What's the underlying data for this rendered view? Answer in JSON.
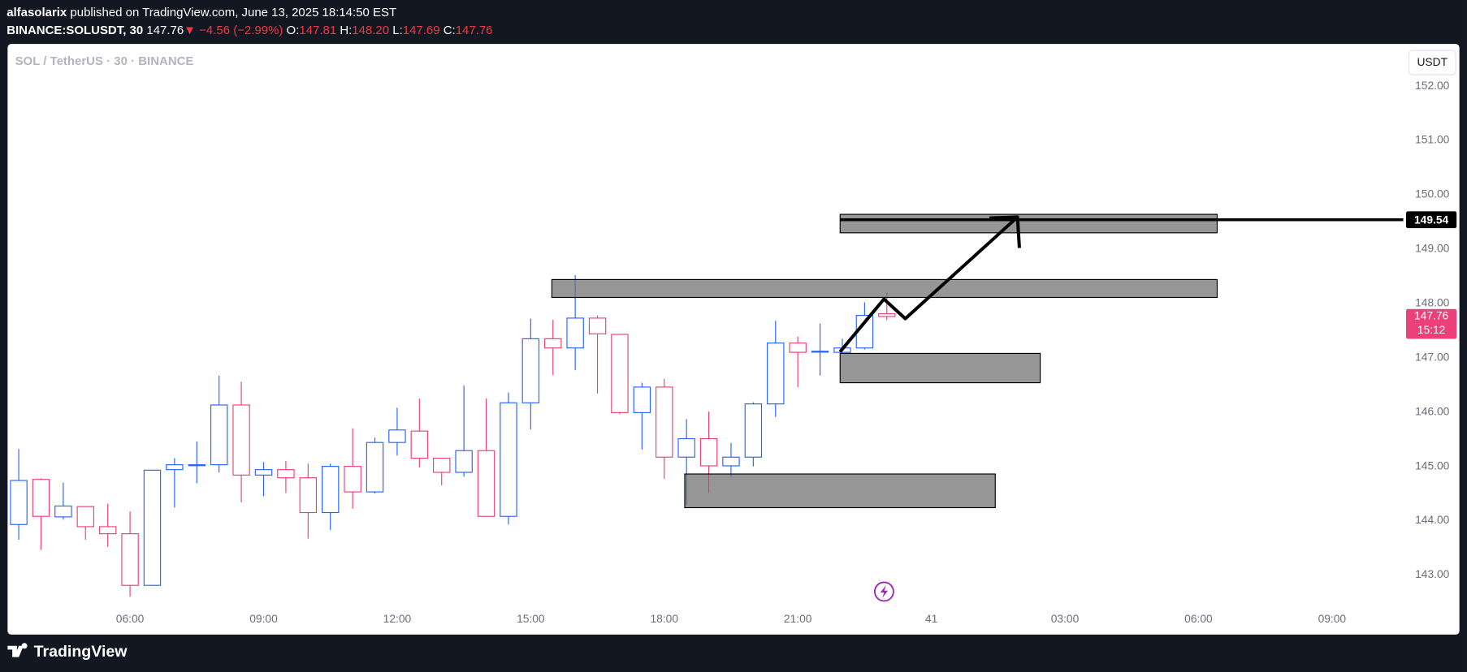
{
  "header": {
    "author": "alfasolarix",
    "published": "published on TradingView.com, June 13, 2025 18:14:50 EST",
    "symbol": "BINANCE:SOLUSDT, 30",
    "last": "147.76",
    "change": "−4.56 (−2.99%)",
    "ohlc": [
      {
        "label": "O:",
        "value": "147.81"
      },
      {
        "label": "H:",
        "value": "148.20"
      },
      {
        "label": "L:",
        "value": "147.69"
      },
      {
        "label": "C:",
        "value": "147.76"
      }
    ]
  },
  "chart_data": {
    "type": "candlestick",
    "legend": "SOL / TetherUS · 30 · BINANCE",
    "currency": "USDT",
    "up_color": "#2962ff",
    "down_color": "#ec407a",
    "countdown": "15:12",
    "open": [
      143.93,
      144.76,
      144.07,
      144.26,
      143.89,
      143.76,
      142.81,
      144.94,
      145.02,
      145.03,
      146.13,
      144.84,
      144.94,
      144.79,
      144.15,
      145.0,
      144.53,
      145.44,
      145.65,
      145.15,
      144.89,
      145.29,
      144.08,
      146.17,
      147.35,
      147.18,
      147.73,
      147.43,
      145.99,
      146.46,
      145.17,
      145.51,
      145.01,
      145.17,
      146.15,
      147.27,
      147.11,
      147.1,
      147.18,
      147.81
    ],
    "high": [
      145.32,
      144.78,
      144.7,
      144.27,
      144.31,
      144.17,
      144.93,
      145.15,
      145.46,
      146.67,
      146.56,
      145.08,
      145.1,
      145.05,
      145.05,
      145.7,
      145.53,
      146.08,
      146.25,
      145.16,
      146.49,
      146.25,
      146.36,
      147.72,
      147.7,
      148.52,
      147.78,
      147.44,
      146.54,
      146.61,
      145.87,
      146.01,
      145.43,
      146.18,
      147.68,
      147.39,
      147.63,
      147.35,
      148.02,
      148.2
    ],
    "low": [
      143.65,
      143.46,
      144.02,
      143.65,
      143.52,
      142.6,
      142.81,
      144.24,
      144.69,
      144.89,
      144.34,
      144.45,
      144.51,
      143.67,
      143.83,
      144.22,
      144.5,
      145.2,
      144.98,
      144.65,
      144.81,
      144.08,
      143.93,
      145.68,
      146.68,
      146.77,
      146.34,
      145.96,
      145.31,
      144.77,
      144.29,
      144.51,
      144.81,
      145.0,
      145.91,
      146.46,
      146.67,
      147.08,
      147.15,
      147.69
    ],
    "close": [
      144.74,
      144.08,
      144.27,
      143.89,
      143.76,
      142.81,
      144.93,
      145.03,
      145.03,
      146.13,
      144.84,
      144.94,
      144.79,
      144.15,
      145.0,
      144.53,
      145.44,
      145.67,
      145.15,
      144.89,
      145.29,
      144.08,
      146.17,
      147.35,
      147.18,
      147.73,
      147.44,
      145.99,
      146.46,
      145.17,
      145.51,
      145.01,
      145.17,
      146.15,
      147.27,
      147.1,
      147.12,
      147.18,
      147.78,
      147.76
    ],
    "xlim": [
      -0.5,
      62.2
    ],
    "ylim": [
      141.92,
      152.76
    ],
    "xticks": [
      {
        "value": 5,
        "label": "06:00"
      },
      {
        "value": 11,
        "label": "09:00"
      },
      {
        "value": 17,
        "label": "12:00"
      },
      {
        "value": 23,
        "label": "15:00"
      },
      {
        "value": 29,
        "label": "18:00"
      },
      {
        "value": 35,
        "label": "21:00"
      },
      41,
      {
        "value": 47,
        "label": "03:00"
      },
      {
        "value": 53,
        "label": "06:00"
      },
      {
        "value": 59,
        "label": "09:00"
      }
    ],
    "yticks": [
      {
        "value": 152,
        "label": "152.00"
      },
      {
        "value": 151,
        "label": "151.00"
      },
      {
        "value": 150,
        "label": "150.00"
      },
      {
        "value": 149,
        "label": "149.00"
      },
      {
        "value": 148,
        "label": "148.00"
      },
      {
        "value": 147,
        "label": "147.00"
      },
      {
        "value": 146,
        "label": "146.00"
      },
      {
        "value": 145,
        "label": "145.00"
      },
      {
        "value": 144,
        "label": "144.00"
      },
      {
        "value": 143,
        "label": "143.00"
      }
    ],
    "zones": [
      {
        "from": 36.9,
        "to": 53.84,
        "high": 149.64,
        "low": 149.3
      },
      {
        "from": 23.95,
        "to": 53.84,
        "high": 148.44,
        "low": 148.11
      },
      {
        "from": 36.9,
        "to": 45.89,
        "high": 147.08,
        "low": 146.54
      },
      {
        "from": 29.92,
        "to": 43.87,
        "high": 144.86,
        "low": 144.24
      }
    ],
    "path": {
      "x": [
        36.9,
        38.87,
        39.83,
        44.87
      ],
      "y": [
        147.11,
        148.08,
        147.72,
        149.59
      ]
    },
    "hline": {
      "value": 149.54,
      "from": 36.9
    }
  }
}
